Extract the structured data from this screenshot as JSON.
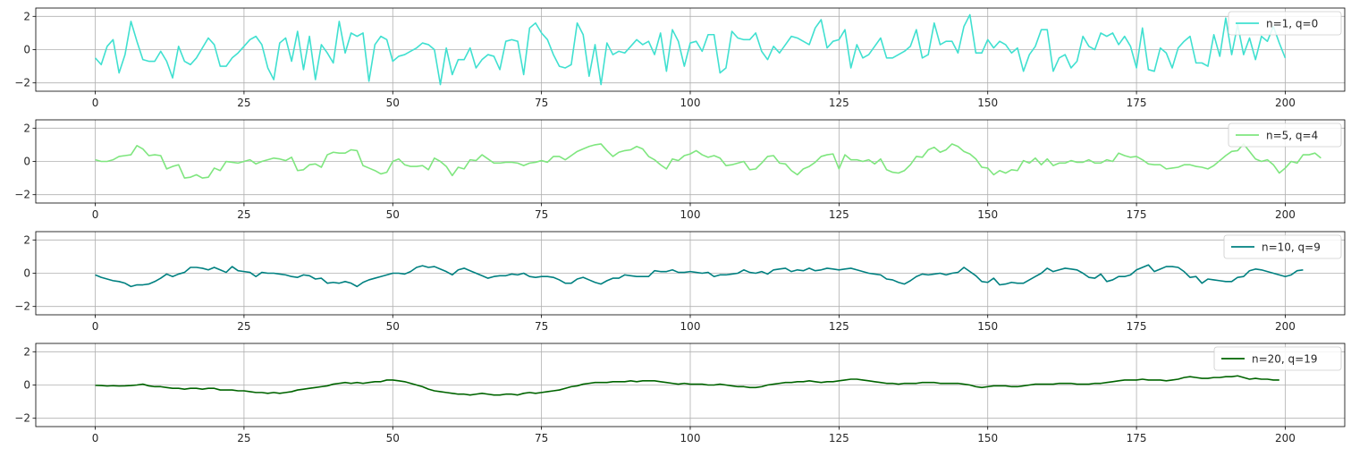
{
  "chart_data": [
    {
      "type": "line",
      "xlim": [
        -10,
        210
      ],
      "ylim": [
        -2.5,
        2.5
      ],
      "xticks": [
        0,
        25,
        50,
        75,
        100,
        125,
        150,
        175,
        200
      ],
      "yticks": [
        -2,
        0,
        2
      ],
      "grid": true,
      "legend_position": "top-right",
      "series": [
        {
          "name": "n=1, q=0",
          "color": "#40e0d0",
          "x_start": 0,
          "x_step": 1,
          "values": [
            -0.5,
            -0.9,
            0.2,
            0.6,
            -1.4,
            -0.3,
            1.7,
            0.5,
            -0.6,
            -0.7,
            -0.7,
            -0.1,
            -0.7,
            -1.7,
            0.2,
            -0.7,
            -0.9,
            -0.5,
            0.1,
            0.7,
            0.3,
            -1.0,
            -1.0,
            -0.5,
            -0.2,
            0.2,
            0.6,
            0.8,
            0.3,
            -1.1,
            -1.8,
            0.4,
            0.7,
            -0.7,
            1.1,
            -1.2,
            0.8,
            -1.8,
            0.3,
            -0.2,
            -0.8,
            1.7,
            -0.2,
            1.0,
            0.8,
            1.0,
            -1.9,
            0.3,
            0.8,
            0.6,
            -0.7,
            -0.4,
            -0.3,
            -0.1,
            0.1,
            0.4,
            0.3,
            0.0,
            -2.1,
            0.1,
            -1.5,
            -0.6,
            -0.6,
            0.1,
            -1.1,
            -0.6,
            -0.3,
            -0.4,
            -1.2,
            0.5,
            0.6,
            0.5,
            -1.5,
            1.3,
            1.6,
            1.0,
            0.6,
            -0.3,
            -1.0,
            -1.1,
            -0.9,
            1.6,
            0.9,
            -1.6,
            0.3,
            -2.1,
            0.4,
            -0.3,
            -0.1,
            -0.2,
            0.2,
            0.6,
            0.3,
            0.5,
            -0.3,
            1.0,
            -1.3,
            1.2,
            0.5,
            -1.0,
            0.4,
            0.5,
            -0.1,
            0.9,
            0.9,
            -1.4,
            -1.1,
            1.1,
            0.7,
            0.6,
            0.6,
            1.0,
            -0.1,
            -0.6,
            0.2,
            -0.2,
            0.3,
            0.8,
            0.7,
            0.5,
            0.3,
            1.3,
            1.8,
            0.1,
            0.5,
            0.6,
            1.2,
            -1.1,
            0.3,
            -0.5,
            -0.3,
            0.2,
            0.7,
            -0.5,
            -0.5,
            -0.3,
            -0.1,
            0.2,
            1.2,
            -0.5,
            -0.3,
            1.6,
            0.3,
            0.5,
            0.5,
            -0.2,
            1.4,
            2.1,
            -0.2,
            -0.2,
            0.6,
            0.1,
            0.5,
            0.3,
            -0.2,
            0.1,
            -1.3,
            -0.3,
            0.2,
            1.2,
            1.2,
            -1.3,
            -0.5,
            -0.3,
            -1.1,
            -0.7,
            0.8,
            0.2,
            0.0,
            1.0,
            0.8,
            1.0,
            0.3,
            0.8,
            0.2,
            -1.1,
            1.3,
            -1.2,
            -1.3,
            0.1,
            -0.2,
            -1.1,
            0.1,
            0.5,
            0.8,
            -0.8,
            -0.8,
            -1.0,
            0.9,
            -0.4,
            1.9,
            -0.3,
            1.5,
            -0.3,
            0.7,
            -0.6,
            0.8,
            0.5,
            1.4,
            0.4,
            -0.5
          ]
        }
      ]
    },
    {
      "type": "line",
      "xlim": [
        -10,
        210
      ],
      "ylim": [
        -2.5,
        2.5
      ],
      "xticks": [
        0,
        25,
        50,
        75,
        100,
        125,
        150,
        175,
        200
      ],
      "yticks": [
        -2,
        0,
        2
      ],
      "grid": true,
      "legend_position": "top-right",
      "series": [
        {
          "name": "n=5, q=4",
          "color": "#7fe67f",
          "x_start": 0,
          "x_step": 1,
          "values": [
            0.1,
            0.0,
            0.0,
            0.1,
            0.3,
            0.35,
            0.4,
            0.95,
            0.75,
            0.35,
            0.4,
            0.35,
            -0.45,
            -0.3,
            -0.2,
            -1.0,
            -0.95,
            -0.8,
            -1.0,
            -0.95,
            -0.4,
            -0.55,
            0.0,
            -0.05,
            -0.1,
            0.0,
            0.1,
            -0.15,
            0.0,
            0.1,
            0.2,
            0.15,
            0.05,
            0.25,
            -0.55,
            -0.5,
            -0.2,
            -0.15,
            -0.35,
            0.4,
            0.55,
            0.5,
            0.5,
            0.7,
            0.65,
            -0.25,
            -0.4,
            -0.55,
            -0.75,
            -0.65,
            0.0,
            0.15,
            -0.2,
            -0.3,
            -0.3,
            -0.25,
            -0.5,
            0.2,
            0.0,
            -0.3,
            -0.85,
            -0.35,
            -0.45,
            0.1,
            0.05,
            0.4,
            0.15,
            -0.1,
            -0.1,
            -0.05,
            -0.05,
            -0.1,
            -0.25,
            -0.1,
            -0.05,
            0.05,
            -0.05,
            0.3,
            0.3,
            0.1,
            0.35,
            0.6,
            0.75,
            0.9,
            1.0,
            1.05,
            0.65,
            0.3,
            0.55,
            0.65,
            0.7,
            0.9,
            0.75,
            0.3,
            0.1,
            -0.2,
            -0.45,
            0.15,
            0.05,
            0.35,
            0.45,
            0.65,
            0.4,
            0.25,
            0.35,
            0.2,
            -0.25,
            -0.2,
            -0.1,
            0.0,
            -0.5,
            -0.45,
            -0.1,
            0.3,
            0.35,
            -0.1,
            -0.15,
            -0.55,
            -0.8,
            -0.45,
            -0.3,
            -0.05,
            0.3,
            0.4,
            0.45,
            -0.45,
            0.4,
            0.1,
            0.1,
            0.0,
            0.1,
            -0.15,
            0.15,
            -0.5,
            -0.65,
            -0.7,
            -0.55,
            -0.2,
            0.3,
            0.25,
            0.7,
            0.85,
            0.55,
            0.7,
            1.05,
            0.9,
            0.6,
            0.45,
            0.15,
            -0.35,
            -0.4,
            -0.8,
            -0.55,
            -0.7,
            -0.5,
            -0.55,
            0.05,
            -0.1,
            0.2,
            -0.2,
            0.15,
            -0.25,
            -0.1,
            -0.1,
            0.05,
            -0.05,
            -0.05,
            0.1,
            -0.1,
            -0.1,
            0.1,
            0.0,
            0.5,
            0.35,
            0.25,
            0.3,
            0.1,
            -0.15,
            -0.2,
            -0.2,
            -0.45,
            -0.4,
            -0.35,
            -0.2,
            -0.2,
            -0.3,
            -0.35,
            -0.45,
            -0.25,
            0.05,
            0.35,
            0.6,
            0.65,
            1.05,
            0.6,
            0.15,
            0.0,
            0.1,
            -0.2,
            -0.7,
            -0.4,
            0.0,
            -0.1,
            0.4,
            0.4,
            0.5,
            0.2
          ]
        }
      ]
    },
    {
      "type": "line",
      "xlim": [
        -10,
        210
      ],
      "ylim": [
        -2.5,
        2.5
      ],
      "xticks": [
        0,
        25,
        50,
        75,
        100,
        125,
        150,
        175,
        200
      ],
      "yticks": [
        -2,
        0,
        2
      ],
      "grid": true,
      "legend_position": "top-right",
      "series": [
        {
          "name": "n=10, q=9",
          "color": "#008080",
          "x_start": 0,
          "x_step": 1,
          "values": [
            -0.1,
            -0.25,
            -0.35,
            -0.45,
            -0.5,
            -0.6,
            -0.8,
            -0.7,
            -0.7,
            -0.65,
            -0.5,
            -0.3,
            -0.05,
            -0.2,
            -0.05,
            0.05,
            0.35,
            0.35,
            0.3,
            0.2,
            0.35,
            0.2,
            0.05,
            0.4,
            0.15,
            0.1,
            0.05,
            -0.2,
            0.05,
            0.0,
            0.0,
            -0.05,
            -0.1,
            -0.2,
            -0.25,
            -0.1,
            -0.15,
            -0.35,
            -0.3,
            -0.6,
            -0.55,
            -0.6,
            -0.5,
            -0.6,
            -0.8,
            -0.55,
            -0.4,
            -0.3,
            -0.2,
            -0.1,
            0.0,
            0.0,
            -0.05,
            0.1,
            0.35,
            0.45,
            0.35,
            0.4,
            0.25,
            0.1,
            -0.1,
            0.2,
            0.3,
            0.15,
            0.0,
            -0.15,
            -0.3,
            -0.2,
            -0.15,
            -0.15,
            -0.05,
            -0.1,
            0.0,
            -0.2,
            -0.25,
            -0.2,
            -0.2,
            -0.25,
            -0.4,
            -0.6,
            -0.6,
            -0.35,
            -0.25,
            -0.4,
            -0.55,
            -0.65,
            -0.45,
            -0.3,
            -0.3,
            -0.1,
            -0.15,
            -0.2,
            -0.2,
            -0.2,
            0.15,
            0.1,
            0.1,
            0.2,
            0.05,
            0.05,
            0.1,
            0.05,
            0.0,
            0.05,
            -0.2,
            -0.1,
            -0.1,
            -0.05,
            0.0,
            0.2,
            0.05,
            0.0,
            0.1,
            -0.05,
            0.2,
            0.25,
            0.3,
            0.1,
            0.2,
            0.15,
            0.3,
            0.15,
            0.2,
            0.3,
            0.25,
            0.2,
            0.25,
            0.3,
            0.2,
            0.1,
            0.0,
            -0.05,
            -0.1,
            -0.35,
            -0.4,
            -0.55,
            -0.65,
            -0.45,
            -0.2,
            -0.05,
            -0.1,
            -0.05,
            0.0,
            -0.1,
            0.0,
            0.05,
            0.35,
            0.1,
            -0.15,
            -0.5,
            -0.55,
            -0.3,
            -0.7,
            -0.65,
            -0.55,
            -0.6,
            -0.6,
            -0.4,
            -0.2,
            0.0,
            0.3,
            0.1,
            0.2,
            0.3,
            0.25,
            0.2,
            0.0,
            -0.25,
            -0.3,
            -0.05,
            -0.5,
            -0.4,
            -0.2,
            -0.2,
            -0.1,
            0.2,
            0.35,
            0.5,
            0.1,
            0.25,
            0.4,
            0.4,
            0.35,
            0.1,
            -0.25,
            -0.2,
            -0.6,
            -0.35,
            -0.4,
            -0.45,
            -0.5,
            -0.5,
            -0.25,
            -0.2,
            0.15,
            0.25,
            0.2,
            0.1,
            0.0,
            -0.1,
            -0.2,
            -0.1,
            0.15,
            0.2
          ]
        }
      ]
    },
    {
      "type": "line",
      "xlim": [
        -10,
        210
      ],
      "ylim": [
        -2.5,
        2.5
      ],
      "xticks": [
        0,
        25,
        50,
        75,
        100,
        125,
        150,
        175,
        200
      ],
      "yticks": [
        -2,
        0,
        2
      ],
      "grid": true,
      "legend_position": "top-right",
      "series": [
        {
          "name": "n=20, q=19",
          "color": "#006400",
          "x_start": 0,
          "x_step": 1,
          "values": [
            -0.02,
            -0.03,
            -0.06,
            -0.04,
            -0.06,
            -0.05,
            -0.03,
            0.0,
            0.05,
            -0.05,
            -0.1,
            -0.1,
            -0.15,
            -0.2,
            -0.2,
            -0.25,
            -0.2,
            -0.2,
            -0.25,
            -0.2,
            -0.2,
            -0.3,
            -0.3,
            -0.3,
            -0.35,
            -0.35,
            -0.4,
            -0.45,
            -0.45,
            -0.5,
            -0.45,
            -0.5,
            -0.45,
            -0.4,
            -0.3,
            -0.25,
            -0.2,
            -0.15,
            -0.1,
            -0.05,
            0.05,
            0.1,
            0.15,
            0.1,
            0.15,
            0.1,
            0.15,
            0.2,
            0.2,
            0.3,
            0.3,
            0.25,
            0.2,
            0.1,
            0.0,
            -0.1,
            -0.25,
            -0.35,
            -0.4,
            -0.45,
            -0.5,
            -0.55,
            -0.55,
            -0.6,
            -0.55,
            -0.5,
            -0.55,
            -0.6,
            -0.6,
            -0.55,
            -0.55,
            -0.6,
            -0.5,
            -0.45,
            -0.5,
            -0.45,
            -0.4,
            -0.35,
            -0.3,
            -0.2,
            -0.1,
            -0.05,
            0.05,
            0.1,
            0.15,
            0.15,
            0.15,
            0.2,
            0.2,
            0.2,
            0.25,
            0.2,
            0.25,
            0.25,
            0.25,
            0.2,
            0.15,
            0.1,
            0.05,
            0.1,
            0.05,
            0.05,
            0.05,
            0.0,
            0.0,
            0.05,
            0.0,
            -0.05,
            -0.1,
            -0.1,
            -0.15,
            -0.15,
            -0.1,
            0.0,
            0.05,
            0.1,
            0.15,
            0.15,
            0.2,
            0.2,
            0.25,
            0.2,
            0.15,
            0.2,
            0.2,
            0.25,
            0.3,
            0.35,
            0.35,
            0.3,
            0.25,
            0.2,
            0.15,
            0.1,
            0.1,
            0.05,
            0.1,
            0.1,
            0.1,
            0.15,
            0.15,
            0.15,
            0.1,
            0.1,
            0.1,
            0.1,
            0.05,
            0.0,
            -0.1,
            -0.15,
            -0.1,
            -0.05,
            -0.05,
            -0.05,
            -0.1,
            -0.1,
            -0.05,
            0.0,
            0.05,
            0.05,
            0.05,
            0.05,
            0.1,
            0.1,
            0.1,
            0.05,
            0.05,
            0.05,
            0.1,
            0.1,
            0.15,
            0.2,
            0.25,
            0.3,
            0.3,
            0.3,
            0.35,
            0.3,
            0.3,
            0.3,
            0.25,
            0.3,
            0.35,
            0.45,
            0.5,
            0.45,
            0.4,
            0.4,
            0.45,
            0.45,
            0.5,
            0.5,
            0.55,
            0.45,
            0.35,
            0.4,
            0.35,
            0.35,
            0.3,
            0.3
          ]
        }
      ]
    }
  ]
}
